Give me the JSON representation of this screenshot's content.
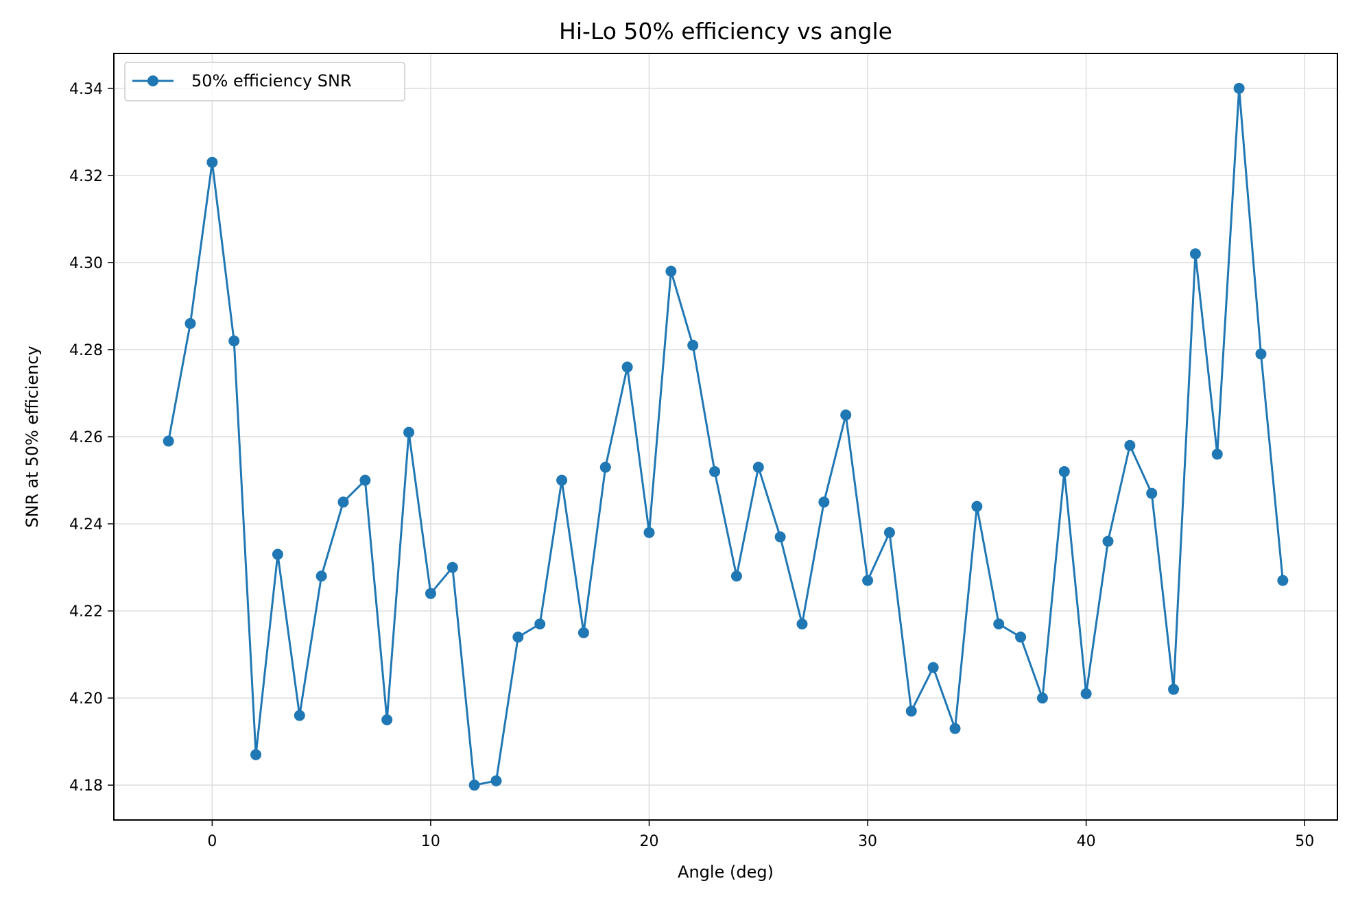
{
  "chart_data": {
    "type": "line",
    "title": "Hi-Lo 50% efficiency vs angle",
    "xlabel": "Angle (deg)",
    "ylabel": "SNR at 50% efficiency",
    "xlim": [
      -4.5,
      51.5
    ],
    "ylim": [
      4.172,
      4.348
    ],
    "xticks": [
      0,
      10,
      20,
      30,
      40,
      50
    ],
    "yticks": [
      4.18,
      4.2,
      4.22,
      4.24,
      4.26,
      4.28,
      4.3,
      4.32,
      4.34
    ],
    "xtick_labels": [
      "0",
      "10",
      "20",
      "30",
      "40",
      "50"
    ],
    "ytick_labels": [
      "4.18",
      "4.20",
      "4.22",
      "4.24",
      "4.26",
      "4.28",
      "4.30",
      "4.32",
      "4.34"
    ],
    "grid": true,
    "legend_position": "top-left",
    "series": [
      {
        "name": "50% efficiency SNR",
        "color": "#1f77b4",
        "marker": "circle",
        "x": [
          -2,
          -1,
          0,
          1,
          2,
          3,
          4,
          5,
          6,
          7,
          8,
          9,
          10,
          11,
          12,
          13,
          14,
          15,
          16,
          17,
          18,
          19,
          20,
          21,
          22,
          23,
          24,
          25,
          26,
          27,
          28,
          29,
          30,
          31,
          32,
          33,
          34,
          35,
          36,
          37,
          38,
          39,
          40,
          41,
          42,
          43,
          44,
          45,
          46,
          47,
          48,
          49
        ],
        "y": [
          4.259,
          4.286,
          4.323,
          4.282,
          4.187,
          4.233,
          4.196,
          4.228,
          4.245,
          4.25,
          4.195,
          4.261,
          4.224,
          4.23,
          4.18,
          4.181,
          4.214,
          4.217,
          4.25,
          4.215,
          4.253,
          4.276,
          4.238,
          4.298,
          4.281,
          4.252,
          4.228,
          4.253,
          4.237,
          4.217,
          4.245,
          4.265,
          4.227,
          4.238,
          4.197,
          4.207,
          4.193,
          4.244,
          4.217,
          4.214,
          4.2,
          4.252,
          4.201,
          4.236,
          4.258,
          4.247,
          4.202,
          4.302,
          4.256,
          4.34,
          4.279,
          4.227
        ]
      }
    ]
  }
}
